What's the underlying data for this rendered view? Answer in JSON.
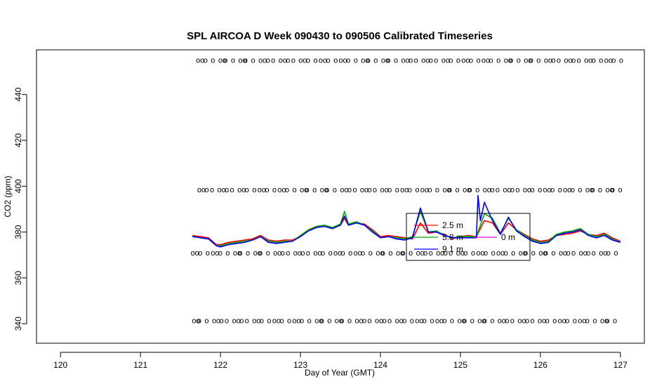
{
  "chart_data": {
    "type": "line",
    "title": "SPL AIRCOA D  Week 090430 to 090506  Calibrated Timeseries",
    "xlabel": "Day of Year (GMT)",
    "ylabel": "CO2 (ppm)",
    "xlim": [
      119.7,
      127.3
    ],
    "ylim": [
      331.5,
      459.5
    ],
    "x_ticks": [
      120,
      121,
      122,
      123,
      124,
      125,
      126,
      127
    ],
    "x_tick_labels": [
      "120",
      "121",
      "122",
      "123",
      "124",
      "125",
      "126",
      "127"
    ],
    "y_ticks": [
      340,
      360,
      380,
      400,
      420,
      440
    ],
    "y_tick_labels": [
      "340",
      "360",
      "380",
      "400",
      "420",
      "440"
    ],
    "grid": false,
    "legend": {
      "placement": "center-right",
      "entries": [
        {
          "label": "2.5 m",
          "color": "#ff0000"
        },
        {
          "label": "5.8 m",
          "color": "#00aa00"
        },
        {
          "label": "9.1 m",
          "color": "#0000ff"
        },
        {
          "label": "0 m",
          "color": "#ff00ff"
        }
      ]
    },
    "series": [
      {
        "name": "2.5 m",
        "color": "#ff0000",
        "x": [
          121.65,
          121.75,
          121.85,
          121.95,
          122.0,
          122.1,
          122.2,
          122.3,
          122.4,
          122.5,
          122.6,
          122.7,
          122.8,
          122.9,
          123.0,
          123.1,
          123.2,
          123.3,
          123.4,
          123.5,
          123.55,
          123.6,
          123.7,
          123.8,
          123.9,
          124.0,
          124.1,
          124.2,
          124.3,
          124.4,
          124.5,
          124.6,
          124.7,
          124.8,
          124.9,
          125.0,
          125.1,
          125.2,
          125.3,
          125.4,
          125.5,
          125.6,
          125.7,
          125.8,
          125.9,
          126.0,
          126.1,
          126.2,
          126.3,
          126.4,
          126.5,
          126.6,
          126.7,
          126.8,
          126.9,
          127.0
        ],
        "y": [
          378.5,
          378.0,
          377.5,
          374.5,
          374.5,
          375.5,
          376.0,
          376.5,
          377.0,
          378.5,
          376.5,
          376.0,
          376.5,
          376.5,
          378.0,
          380.5,
          382.0,
          382.5,
          381.5,
          383.0,
          386.0,
          383.0,
          384.0,
          383.5,
          381.0,
          378.0,
          378.5,
          378.0,
          377.5,
          377.0,
          384.0,
          379.5,
          380.0,
          379.0,
          377.0,
          378.0,
          378.5,
          378.0,
          385.0,
          384.0,
          379.0,
          384.0,
          381.0,
          379.0,
          377.0,
          376.0,
          376.5,
          378.5,
          379.0,
          379.5,
          380.5,
          379.0,
          378.5,
          379.5,
          377.5,
          376.0
        ]
      },
      {
        "name": "5.8 m",
        "color": "#00aa00",
        "x": [
          121.65,
          121.75,
          121.85,
          121.95,
          122.0,
          122.1,
          122.2,
          122.3,
          122.4,
          122.5,
          122.6,
          122.7,
          122.8,
          122.9,
          123.0,
          123.1,
          123.2,
          123.3,
          123.4,
          123.5,
          123.55,
          123.6,
          123.7,
          123.8,
          123.9,
          124.0,
          124.1,
          124.2,
          124.3,
          124.4,
          124.5,
          124.6,
          124.7,
          124.8,
          124.9,
          125.0,
          125.1,
          125.2,
          125.3,
          125.4,
          125.5,
          125.6,
          125.7,
          125.8,
          125.9,
          126.0,
          126.1,
          126.2,
          126.3,
          126.4,
          126.5,
          126.6,
          126.7,
          126.8,
          126.9,
          127.0
        ],
        "y": [
          378.0,
          377.5,
          377.0,
          374.0,
          374.0,
          375.0,
          375.5,
          376.0,
          376.5,
          378.0,
          376.0,
          375.5,
          376.0,
          376.0,
          378.5,
          381.0,
          382.5,
          383.0,
          382.0,
          383.5,
          389.0,
          383.5,
          384.5,
          383.0,
          380.5,
          377.5,
          378.0,
          377.5,
          377.0,
          378.0,
          389.0,
          380.0,
          380.5,
          378.5,
          377.5,
          378.0,
          378.0,
          378.0,
          388.0,
          386.0,
          379.5,
          386.0,
          381.0,
          378.5,
          376.5,
          375.5,
          376.0,
          379.0,
          380.0,
          380.5,
          381.5,
          379.0,
          378.0,
          379.0,
          377.0,
          375.5
        ]
      },
      {
        "name": "9.1 m",
        "color": "#0000ff",
        "x": [
          121.65,
          121.75,
          121.85,
          121.95,
          122.0,
          122.1,
          122.2,
          122.3,
          122.4,
          122.5,
          122.6,
          122.7,
          122.8,
          122.9,
          123.0,
          123.1,
          123.2,
          123.3,
          123.4,
          123.5,
          123.55,
          123.6,
          123.7,
          123.8,
          123.9,
          124.0,
          124.1,
          124.2,
          124.3,
          124.4,
          124.5,
          124.6,
          124.7,
          124.8,
          124.9,
          125.0,
          125.1,
          125.2,
          125.22,
          125.25,
          125.3,
          125.4,
          125.5,
          125.6,
          125.7,
          125.8,
          125.9,
          126.0,
          126.1,
          126.2,
          126.3,
          126.4,
          126.5,
          126.6,
          126.7,
          126.8,
          126.9,
          127.0
        ],
        "y": [
          378.0,
          377.5,
          377.0,
          374.0,
          373.5,
          374.5,
          375.0,
          375.5,
          376.5,
          378.0,
          375.5,
          375.0,
          375.5,
          376.0,
          378.0,
          380.5,
          382.0,
          382.5,
          381.5,
          383.0,
          387.0,
          383.0,
          384.0,
          383.0,
          380.0,
          377.5,
          378.0,
          377.0,
          376.5,
          377.5,
          390.5,
          380.0,
          380.0,
          378.5,
          377.5,
          377.5,
          377.5,
          377.5,
          396.0,
          385.0,
          393.0,
          385.0,
          379.0,
          386.5,
          380.5,
          378.0,
          376.0,
          375.0,
          375.5,
          378.5,
          379.5,
          380.0,
          381.0,
          378.5,
          377.5,
          378.5,
          376.5,
          375.5
        ]
      }
    ],
    "calibration_levels": [
      {
        "y": 455,
        "x_start": 121.72,
        "x_end": 127.0
      },
      {
        "y": 398.5,
        "x_start": 121.72,
        "x_end": 127.0
      },
      {
        "y": 371,
        "x_start": 121.65,
        "x_end": 127.0
      },
      {
        "y": 341.5,
        "x_start": 121.65,
        "x_end": 127.0
      }
    ],
    "calibration_marker": "o"
  }
}
